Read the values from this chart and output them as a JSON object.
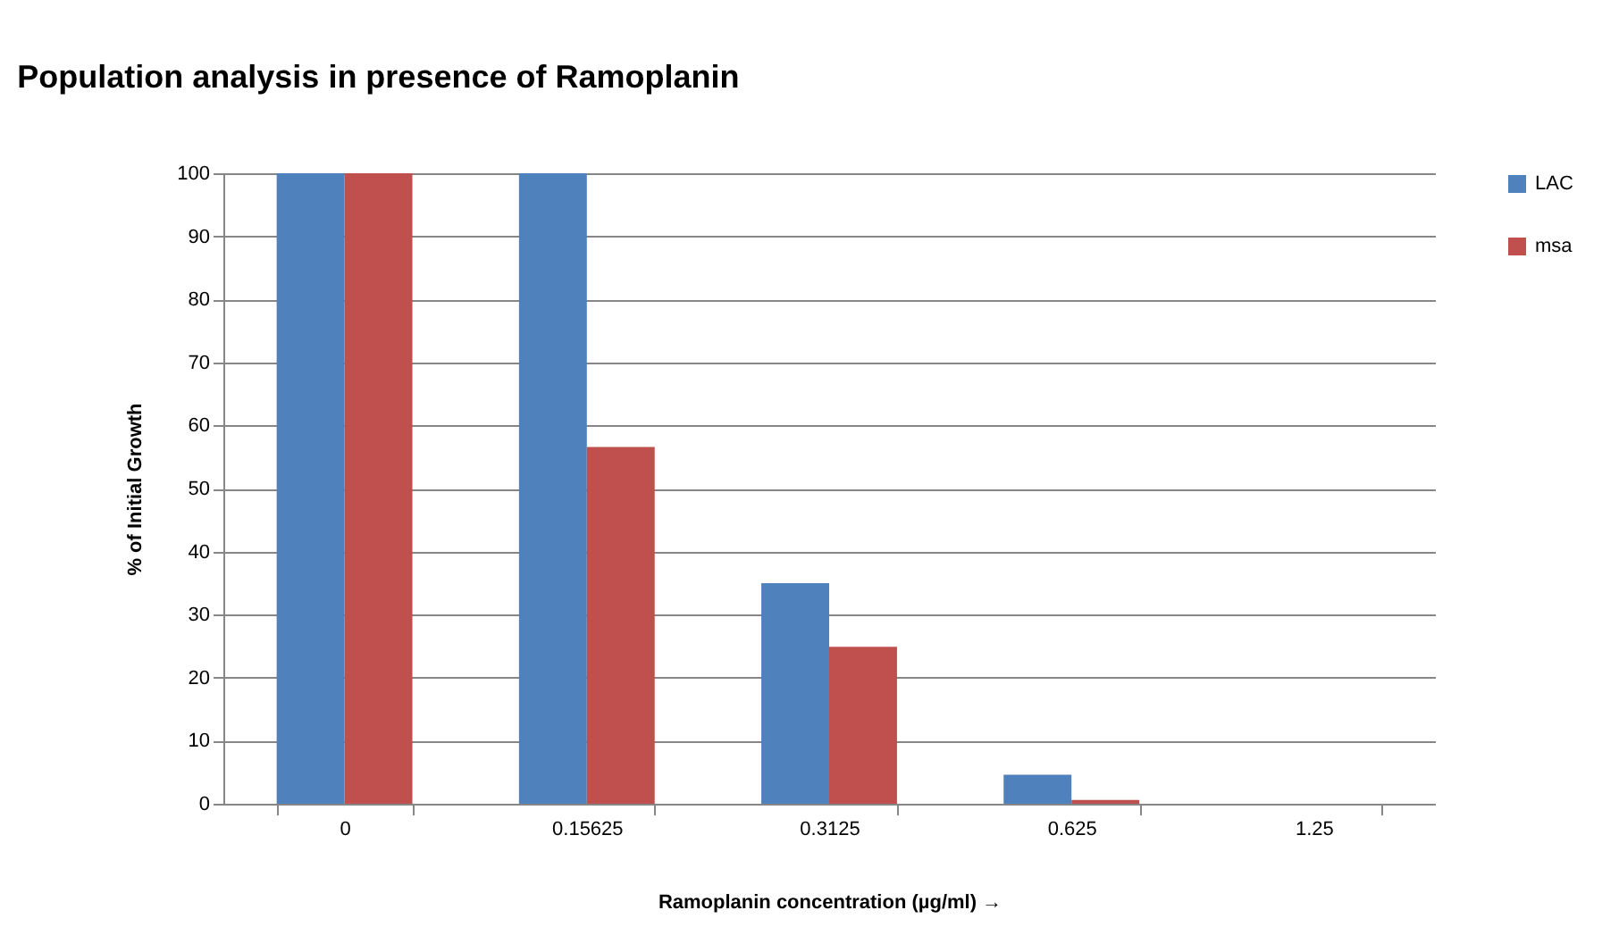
{
  "chart_data": {
    "type": "bar",
    "title": "Population analysis in presence of Ramoplanin",
    "xlabel": "Ramoplanin concentration (µg/ml) →",
    "ylabel": "% of Initial Growth",
    "categories": [
      "0",
      "0.15625",
      "0.3125",
      "0.625",
      "1.25"
    ],
    "series": [
      {
        "name": "LAC",
        "color": "#4f81bd",
        "values": [
          100,
          100,
          35,
          4.6,
          0
        ]
      },
      {
        "name": "msa",
        "color": "#c0504d",
        "values": [
          100,
          56.6,
          24.9,
          0.6,
          0
        ]
      }
    ],
    "ylim": [
      0,
      100
    ],
    "yticks": [
      0,
      10,
      20,
      30,
      40,
      50,
      60,
      70,
      80,
      90,
      100
    ],
    "grid": "y",
    "legend": "right"
  }
}
